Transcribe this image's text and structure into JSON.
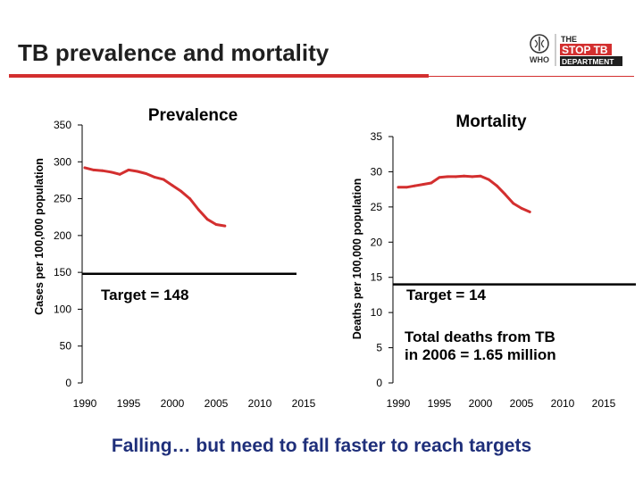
{
  "title": "TB prevalence and mortality",
  "logo": {
    "who_text": "WHO",
    "brand_line1": "THE",
    "brand_line2": "STOP TB",
    "brand_line3": "DEPARTMENT",
    "colors": {
      "red": "#d32f2f",
      "dark": "#1f1f1f"
    }
  },
  "footer": "Falling… but need to fall faster to reach targets",
  "chart_data": [
    {
      "type": "line",
      "title": "Prevalence",
      "ylabel": "Cases per 100,000 population",
      "xlim": [
        1990,
        2015
      ],
      "ylim": [
        0,
        350
      ],
      "xticks": [
        1990,
        1995,
        2000,
        2005,
        2010,
        2015
      ],
      "yticks": [
        0,
        50,
        100,
        150,
        200,
        250,
        300,
        350
      ],
      "grid": false,
      "color": "#d32f2f",
      "series": [
        {
          "x": [
            1990,
            1991,
            1992,
            1993,
            1994,
            1995,
            1996,
            1997,
            1998,
            1999,
            2000,
            2001,
            2002,
            2003,
            2004,
            2005,
            2006
          ],
          "values": [
            292,
            289,
            288,
            286,
            283,
            289,
            287,
            284,
            279,
            276,
            268,
            260,
            250,
            235,
            222,
            215,
            213
          ]
        }
      ],
      "target": {
        "value": 148,
        "label": "Target = 148"
      }
    },
    {
      "type": "line",
      "title": "Mortality",
      "ylabel": "Deaths per 100,000 population",
      "xlim": [
        1990,
        2015
      ],
      "ylim": [
        0,
        35
      ],
      "xticks": [
        1990,
        1995,
        2000,
        2005,
        2010,
        2015
      ],
      "yticks": [
        0,
        5,
        10,
        15,
        20,
        25,
        30,
        35
      ],
      "grid": false,
      "color": "#d32f2f",
      "series": [
        {
          "x": [
            1990,
            1991,
            1992,
            1993,
            1994,
            1995,
            1996,
            1997,
            1998,
            1999,
            2000,
            2001,
            2002,
            2003,
            2004,
            2005,
            2006
          ],
          "values": [
            27.8,
            27.8,
            28.0,
            28.2,
            28.4,
            29.2,
            29.3,
            29.3,
            29.4,
            29.3,
            29.4,
            28.9,
            28.0,
            26.8,
            25.5,
            24.8,
            24.3
          ]
        }
      ],
      "target": {
        "value": 14,
        "label": "Target = 14"
      },
      "annotation": {
        "line1": "Total deaths from TB",
        "line2": "in 2006 = 1.65 million"
      }
    }
  ]
}
